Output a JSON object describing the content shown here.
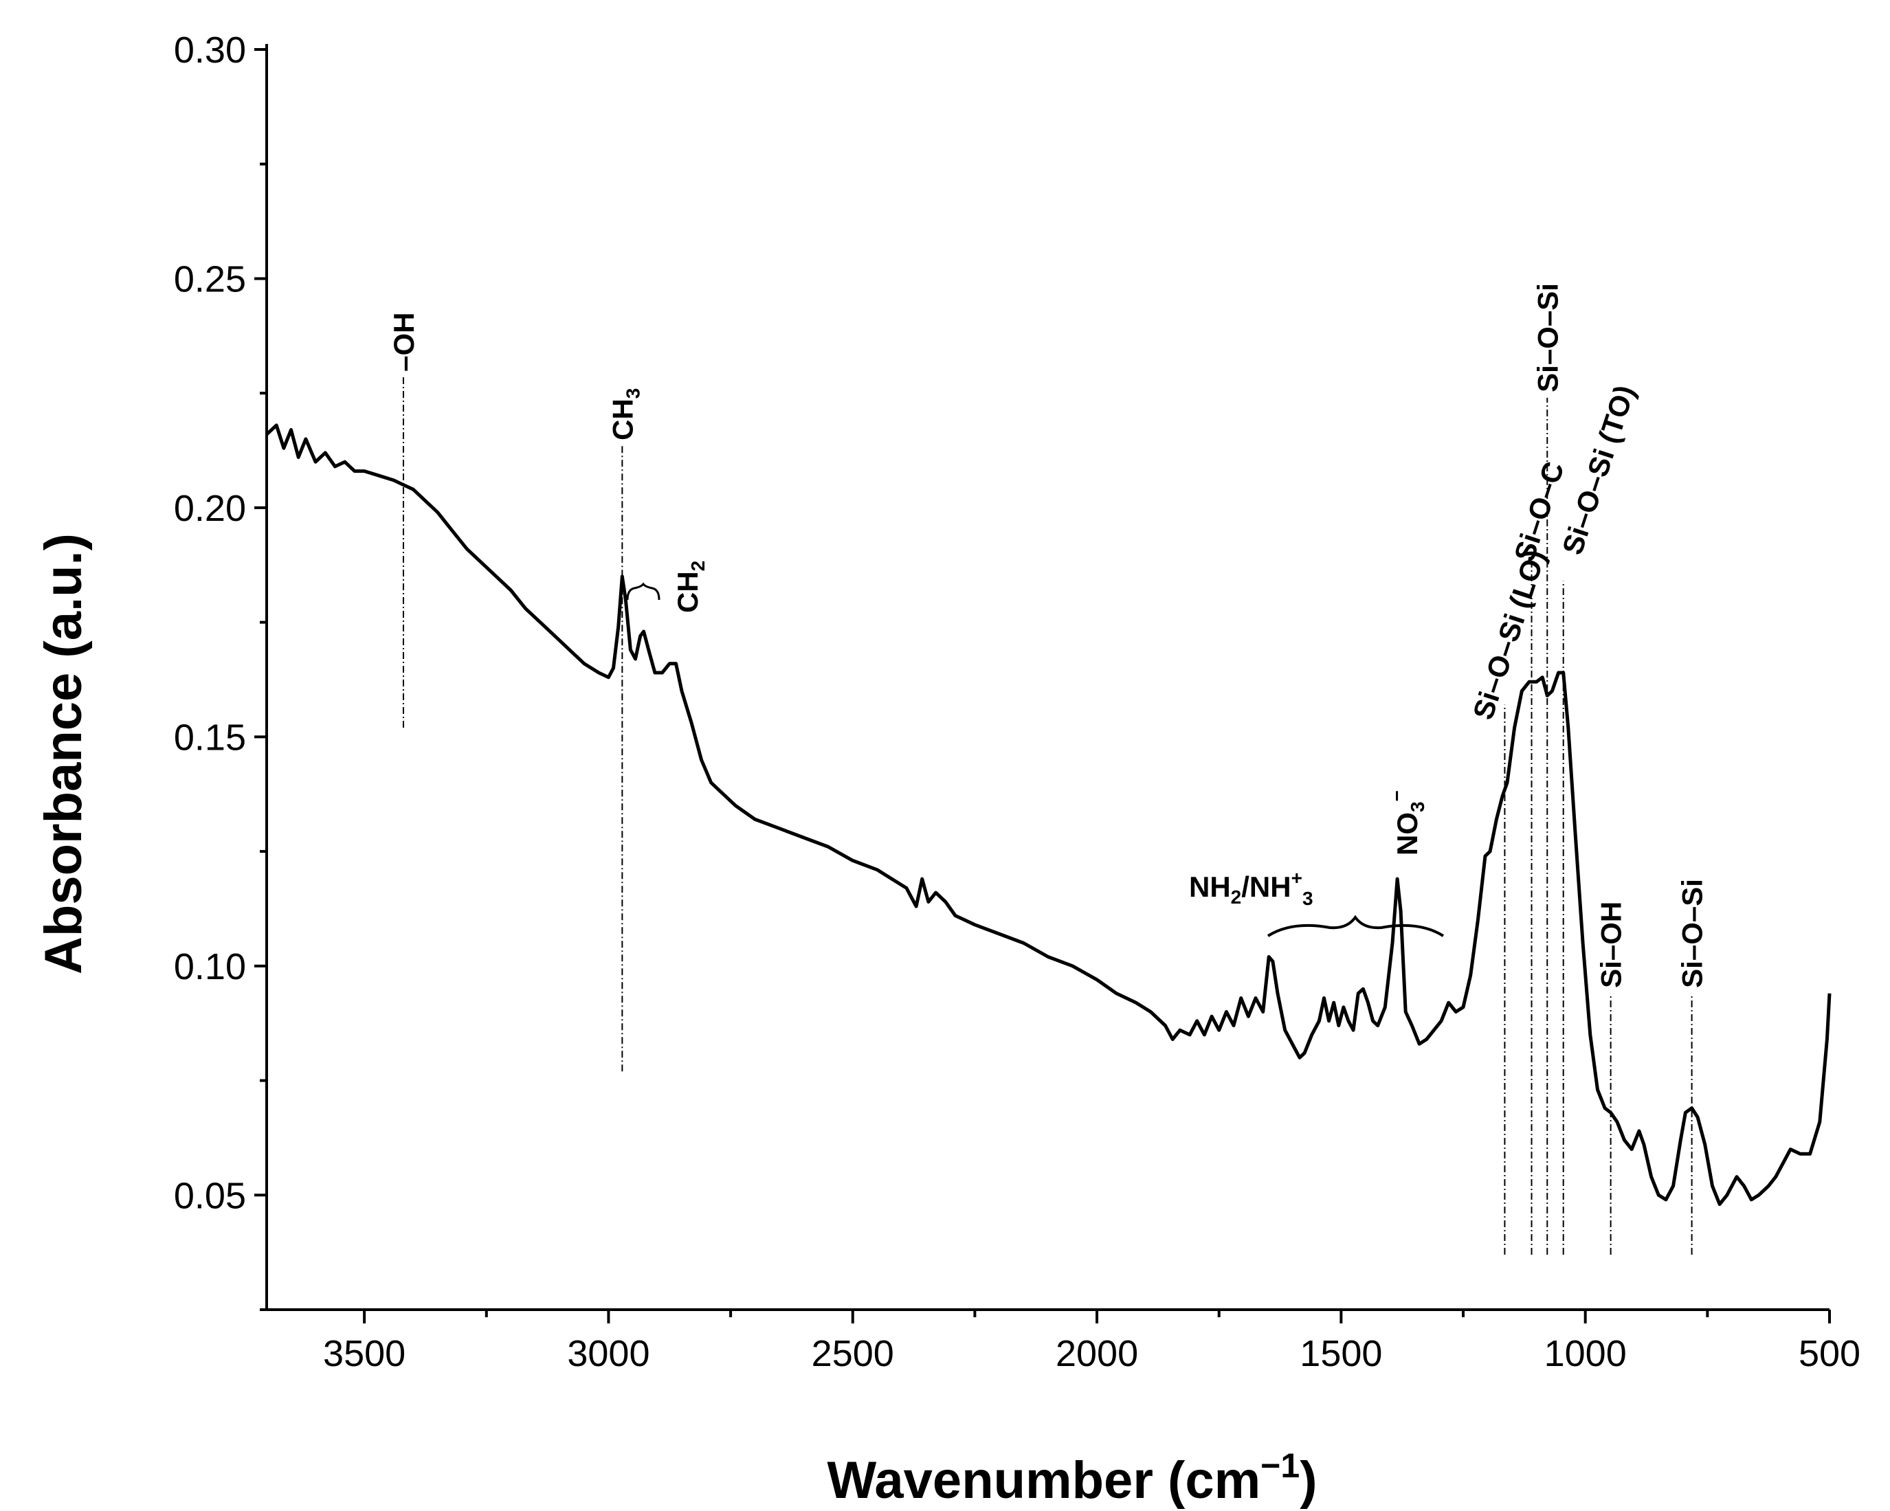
{
  "chart_data": {
    "type": "line",
    "title": "",
    "xlabel": "Wavenumber (cm",
    "xlabel_sup": "−1",
    "xlabel_end": ")",
    "ylabel": "Absorbance (a.u.)",
    "xlim": [
      3700,
      500
    ],
    "ylim": [
      0.025,
      0.3
    ],
    "x_ticks": [
      3500,
      3000,
      2500,
      2000,
      1500,
      1000,
      500
    ],
    "x_tick_labels": [
      "3500",
      "3000",
      "2500",
      "2000",
      "1500",
      "1000",
      "500"
    ],
    "y_ticks": [
      0.05,
      0.1,
      0.15,
      0.2,
      0.25,
      0.3
    ],
    "y_tick_labels": [
      "0.05",
      "0.10",
      "0.15",
      "0.20",
      "0.25",
      "0.30"
    ],
    "series": [
      {
        "name": "spectrum",
        "color": "#000000",
        "points": [
          [
            3700,
            0.216
          ],
          [
            3680,
            0.218
          ],
          [
            3665,
            0.213
          ],
          [
            3650,
            0.217
          ],
          [
            3635,
            0.211
          ],
          [
            3620,
            0.215
          ],
          [
            3600,
            0.21
          ],
          [
            3580,
            0.212
          ],
          [
            3560,
            0.209
          ],
          [
            3540,
            0.21
          ],
          [
            3520,
            0.208
          ],
          [
            3500,
            0.208
          ],
          [
            3470,
            0.207
          ],
          [
            3440,
            0.206
          ],
          [
            3420,
            0.205
          ],
          [
            3400,
            0.204
          ],
          [
            3380,
            0.202
          ],
          [
            3350,
            0.199
          ],
          [
            3320,
            0.195
          ],
          [
            3290,
            0.191
          ],
          [
            3260,
            0.188
          ],
          [
            3230,
            0.185
          ],
          [
            3200,
            0.182
          ],
          [
            3170,
            0.178
          ],
          [
            3140,
            0.175
          ],
          [
            3110,
            0.172
          ],
          [
            3080,
            0.169
          ],
          [
            3050,
            0.166
          ],
          [
            3020,
            0.164
          ],
          [
            3000,
            0.163
          ],
          [
            2990,
            0.165
          ],
          [
            2980,
            0.174
          ],
          [
            2972,
            0.185
          ],
          [
            2965,
            0.18
          ],
          [
            2955,
            0.169
          ],
          [
            2945,
            0.167
          ],
          [
            2935,
            0.172
          ],
          [
            2928,
            0.173
          ],
          [
            2918,
            0.169
          ],
          [
            2905,
            0.164
          ],
          [
            2890,
            0.164
          ],
          [
            2875,
            0.166
          ],
          [
            2862,
            0.166
          ],
          [
            2850,
            0.16
          ],
          [
            2830,
            0.153
          ],
          [
            2810,
            0.145
          ],
          [
            2790,
            0.14
          ],
          [
            2770,
            0.138
          ],
          [
            2740,
            0.135
          ],
          [
            2700,
            0.132
          ],
          [
            2650,
            0.13
          ],
          [
            2600,
            0.128
          ],
          [
            2550,
            0.126
          ],
          [
            2500,
            0.123
          ],
          [
            2450,
            0.121
          ],
          [
            2420,
            0.119
          ],
          [
            2390,
            0.117
          ],
          [
            2370,
            0.113
          ],
          [
            2358,
            0.119
          ],
          [
            2345,
            0.114
          ],
          [
            2330,
            0.116
          ],
          [
            2310,
            0.114
          ],
          [
            2290,
            0.111
          ],
          [
            2250,
            0.109
          ],
          [
            2200,
            0.107
          ],
          [
            2150,
            0.105
          ],
          [
            2100,
            0.102
          ],
          [
            2050,
            0.1
          ],
          [
            2000,
            0.097
          ],
          [
            1960,
            0.094
          ],
          [
            1920,
            0.092
          ],
          [
            1890,
            0.09
          ],
          [
            1860,
            0.087
          ],
          [
            1845,
            0.084
          ],
          [
            1830,
            0.086
          ],
          [
            1810,
            0.085
          ],
          [
            1795,
            0.088
          ],
          [
            1780,
            0.085
          ],
          [
            1765,
            0.089
          ],
          [
            1750,
            0.086
          ],
          [
            1735,
            0.09
          ],
          [
            1720,
            0.087
          ],
          [
            1705,
            0.093
          ],
          [
            1690,
            0.089
          ],
          [
            1675,
            0.093
          ],
          [
            1660,
            0.09
          ],
          [
            1648,
            0.102
          ],
          [
            1640,
            0.101
          ],
          [
            1630,
            0.094
          ],
          [
            1615,
            0.086
          ],
          [
            1600,
            0.083
          ],
          [
            1585,
            0.08
          ],
          [
            1575,
            0.081
          ],
          [
            1560,
            0.085
          ],
          [
            1545,
            0.088
          ],
          [
            1535,
            0.093
          ],
          [
            1525,
            0.088
          ],
          [
            1515,
            0.092
          ],
          [
            1505,
            0.087
          ],
          [
            1495,
            0.091
          ],
          [
            1485,
            0.088
          ],
          [
            1475,
            0.086
          ],
          [
            1465,
            0.094
          ],
          [
            1455,
            0.095
          ],
          [
            1445,
            0.092
          ],
          [
            1435,
            0.088
          ],
          [
            1425,
            0.087
          ],
          [
            1410,
            0.091
          ],
          [
            1395,
            0.105
          ],
          [
            1385,
            0.119
          ],
          [
            1378,
            0.112
          ],
          [
            1368,
            0.09
          ],
          [
            1355,
            0.087
          ],
          [
            1340,
            0.083
          ],
          [
            1325,
            0.084
          ],
          [
            1310,
            0.086
          ],
          [
            1295,
            0.088
          ],
          [
            1280,
            0.092
          ],
          [
            1265,
            0.09
          ],
          [
            1250,
            0.091
          ],
          [
            1235,
            0.098
          ],
          [
            1220,
            0.11
          ],
          [
            1205,
            0.124
          ],
          [
            1195,
            0.125
          ],
          [
            1182,
            0.132
          ],
          [
            1170,
            0.137
          ],
          [
            1160,
            0.14
          ],
          [
            1145,
            0.152
          ],
          [
            1130,
            0.16
          ],
          [
            1115,
            0.162
          ],
          [
            1100,
            0.162
          ],
          [
            1088,
            0.163
          ],
          [
            1078,
            0.159
          ],
          [
            1068,
            0.16
          ],
          [
            1055,
            0.164
          ],
          [
            1045,
            0.164
          ],
          [
            1035,
            0.152
          ],
          [
            1020,
            0.128
          ],
          [
            1005,
            0.105
          ],
          [
            990,
            0.085
          ],
          [
            975,
            0.073
          ],
          [
            960,
            0.069
          ],
          [
            948,
            0.068
          ],
          [
            935,
            0.066
          ],
          [
            920,
            0.062
          ],
          [
            905,
            0.06
          ],
          [
            890,
            0.064
          ],
          [
            880,
            0.061
          ],
          [
            865,
            0.054
          ],
          [
            850,
            0.05
          ],
          [
            835,
            0.049
          ],
          [
            820,
            0.052
          ],
          [
            805,
            0.062
          ],
          [
            795,
            0.068
          ],
          [
            782,
            0.069
          ],
          [
            770,
            0.067
          ],
          [
            755,
            0.061
          ],
          [
            740,
            0.052
          ],
          [
            725,
            0.048
          ],
          [
            710,
            0.05
          ],
          [
            690,
            0.054
          ],
          [
            675,
            0.052
          ],
          [
            660,
            0.049
          ],
          [
            645,
            0.05
          ],
          [
            625,
            0.052
          ],
          [
            610,
            0.054
          ],
          [
            595,
            0.057
          ],
          [
            580,
            0.06
          ],
          [
            560,
            0.059
          ],
          [
            540,
            0.059
          ],
          [
            520,
            0.066
          ],
          [
            505,
            0.084
          ],
          [
            500,
            0.094
          ]
        ]
      }
    ],
    "annotations": [
      {
        "label": "–OH",
        "x": 3420,
        "from_y": 0.152,
        "to_y": 0.2285,
        "orientation": "vertical"
      },
      {
        "label": "CH",
        "sub": "3",
        "x": 2972,
        "from_y": 0.077,
        "to_y": 0.2135,
        "orientation": "vertical"
      },
      {
        "label": "CH",
        "sub": "2",
        "x": 2880,
        "brace": "right",
        "orientation": "vertical"
      },
      {
        "label": "NH",
        "sub": "2",
        "label2": "/NH",
        "sup2": "+",
        "sub2": "3",
        "x": 1560,
        "brace": "below",
        "orientation": "horizontal"
      },
      {
        "label": "NO",
        "sub": "3",
        "sup": "−",
        "x": 1385,
        "orientation": "vertical"
      },
      {
        "label": "Si–O–Si (LO)",
        "x": 1165,
        "from_y": 0.037,
        "to_y": 0.157,
        "orientation": "diagonal"
      },
      {
        "label": "Si–O–C",
        "x": 1110,
        "from_y": 0.037,
        "to_y": 0.189,
        "orientation": "diagonal"
      },
      {
        "label": "Si–O–Si",
        "x": 1078,
        "from_y": 0.037,
        "to_y": 0.224,
        "orientation": "vertical"
      },
      {
        "label": "Si–O–Si (TO)",
        "x": 1045,
        "from_y": 0.037,
        "to_y": 0.184,
        "orientation": "diagonal"
      },
      {
        "label": "Si–OH",
        "x": 948,
        "from_y": 0.037,
        "to_y": 0.094,
        "orientation": "vertical"
      },
      {
        "label": "Si–O–Si",
        "x": 782,
        "from_y": 0.037,
        "to_y": 0.094,
        "orientation": "vertical"
      }
    ]
  }
}
